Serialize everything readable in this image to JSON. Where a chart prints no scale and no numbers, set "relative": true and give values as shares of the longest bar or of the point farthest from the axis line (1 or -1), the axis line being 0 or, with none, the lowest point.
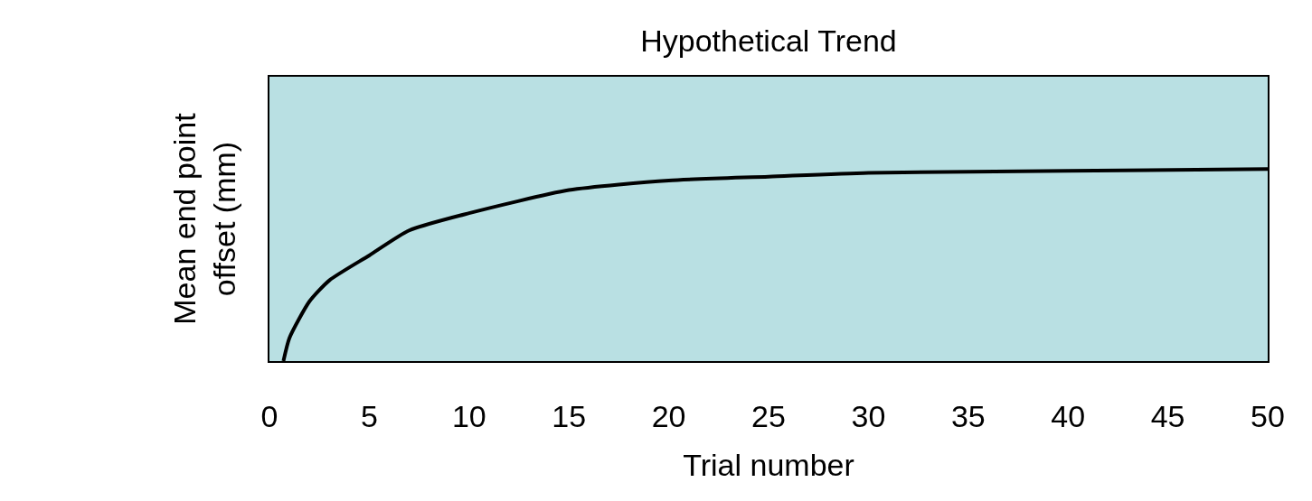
{
  "chart_data": {
    "type": "line",
    "title": "Hypothetical Trend",
    "xlabel": "Trial number",
    "ylabel": "Mean end point\noffset (mm)",
    "relative": true,
    "x": [
      0.7,
      1,
      2,
      3,
      5,
      7,
      10,
      15,
      20,
      25,
      30,
      40,
      50
    ],
    "series": [
      {
        "color": "#000000",
        "values": [
          0,
          0.12,
          0.31,
          0.42,
          0.55,
          0.68,
          0.77,
          0.89,
          0.94,
          0.96,
          0.98,
          0.99,
          1
        ]
      }
    ],
    "xlim": [
      0,
      50
    ],
    "xticks": [
      0,
      5,
      10,
      15,
      20,
      25,
      30,
      35,
      40,
      45,
      50
    ],
    "grid": false,
    "marker": "none",
    "line_style": "solid"
  }
}
